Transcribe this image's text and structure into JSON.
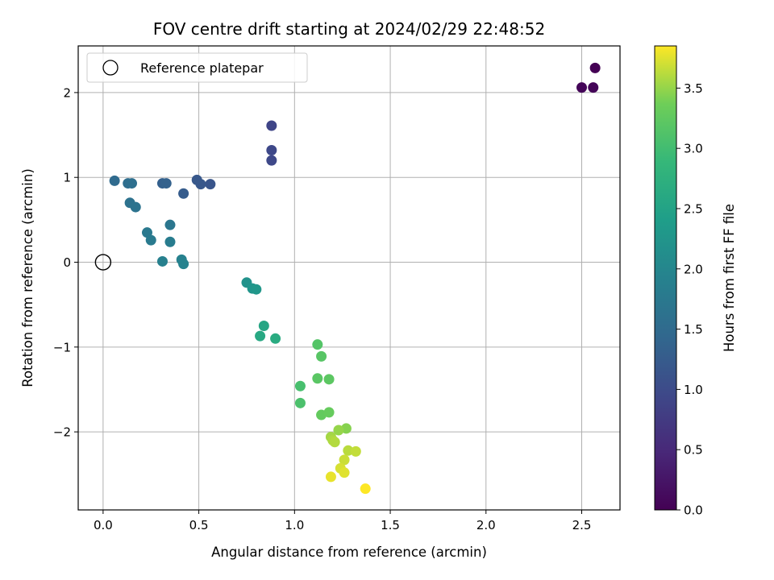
{
  "chart_data": {
    "type": "scatter",
    "title": "FOV centre drift starting at 2024/02/29 22:48:52",
    "xlabel": "Angular distance from reference (arcmin)",
    "ylabel": "Rotation from reference (arcmin)",
    "xlim": [
      -0.13,
      2.7
    ],
    "ylim": [
      -2.92,
      2.55
    ],
    "x_ticks": [
      0.0,
      0.5,
      1.0,
      1.5,
      2.0,
      2.5
    ],
    "x_tick_labels": [
      "0.0",
      "0.5",
      "1.0",
      "1.5",
      "2.0",
      "2.5"
    ],
    "y_ticks": [
      -2,
      -1,
      0,
      1,
      2
    ],
    "y_tick_labels": [
      "−2",
      "−1",
      "0",
      "1",
      "2"
    ],
    "grid": true,
    "legend": {
      "placement": "upper-left",
      "entries": [
        "Reference platepar"
      ]
    },
    "reference_point": {
      "x": 0.0,
      "y": 0.0
    },
    "colorbar": {
      "label": "Hours from first FF file",
      "colormap": "viridis",
      "range": [
        0.0,
        3.85
      ],
      "ticks": [
        0.0,
        0.5,
        1.0,
        1.5,
        2.0,
        2.5,
        3.0,
        3.5
      ],
      "tick_labels": [
        "0.0",
        "0.5",
        "1.0",
        "1.5",
        "2.0",
        "2.5",
        "3.0",
        "3.5"
      ]
    },
    "points": [
      {
        "x": 2.57,
        "y": 2.29,
        "c": 0.0
      },
      {
        "x": 2.5,
        "y": 2.06,
        "c": 0.05
      },
      {
        "x": 2.56,
        "y": 2.06,
        "c": 0.05
      },
      {
        "x": 0.88,
        "y": 1.61,
        "c": 0.9
      },
      {
        "x": 0.88,
        "y": 1.32,
        "c": 0.95
      },
      {
        "x": 0.88,
        "y": 1.2,
        "c": 0.95
      },
      {
        "x": 0.56,
        "y": 0.92,
        "c": 1.15
      },
      {
        "x": 0.51,
        "y": 0.92,
        "c": 1.18
      },
      {
        "x": 0.49,
        "y": 0.97,
        "c": 1.2
      },
      {
        "x": 0.42,
        "y": 0.81,
        "c": 1.25
      },
      {
        "x": 0.31,
        "y": 0.93,
        "c": 1.32
      },
      {
        "x": 0.33,
        "y": 0.93,
        "c": 1.35
      },
      {
        "x": 0.06,
        "y": 0.96,
        "c": 1.5
      },
      {
        "x": 0.13,
        "y": 0.93,
        "c": 1.55
      },
      {
        "x": 0.15,
        "y": 0.93,
        "c": 1.58
      },
      {
        "x": 0.14,
        "y": 0.7,
        "c": 1.62
      },
      {
        "x": 0.17,
        "y": 0.65,
        "c": 1.65
      },
      {
        "x": 0.35,
        "y": 0.44,
        "c": 1.7
      },
      {
        "x": 0.23,
        "y": 0.35,
        "c": 1.75
      },
      {
        "x": 0.25,
        "y": 0.26,
        "c": 1.78
      },
      {
        "x": 0.35,
        "y": 0.24,
        "c": 1.82
      },
      {
        "x": 0.31,
        "y": 0.01,
        "c": 1.88
      },
      {
        "x": 0.41,
        "y": 0.03,
        "c": 1.9
      },
      {
        "x": 0.42,
        "y": -0.02,
        "c": 1.92
      },
      {
        "x": 0.75,
        "y": -0.24,
        "c": 2.2
      },
      {
        "x": 0.78,
        "y": -0.31,
        "c": 2.25
      },
      {
        "x": 0.8,
        "y": -0.32,
        "c": 2.28
      },
      {
        "x": 0.84,
        "y": -0.75,
        "c": 2.55
      },
      {
        "x": 0.82,
        "y": -0.87,
        "c": 2.6
      },
      {
        "x": 0.9,
        "y": -0.9,
        "c": 2.65
      },
      {
        "x": 1.12,
        "y": -0.97,
        "c": 3.15
      },
      {
        "x": 1.14,
        "y": -1.11,
        "c": 3.18
      },
      {
        "x": 1.03,
        "y": -1.46,
        "c": 3.05
      },
      {
        "x": 1.12,
        "y": -1.37,
        "c": 3.2
      },
      {
        "x": 1.18,
        "y": -1.38,
        "c": 3.22
      },
      {
        "x": 1.03,
        "y": -1.66,
        "c": 3.08
      },
      {
        "x": 1.14,
        "y": -1.8,
        "c": 3.28
      },
      {
        "x": 1.18,
        "y": -1.77,
        "c": 3.3
      },
      {
        "x": 1.27,
        "y": -1.96,
        "c": 3.45
      },
      {
        "x": 1.23,
        "y": -1.98,
        "c": 3.5
      },
      {
        "x": 1.19,
        "y": -2.06,
        "c": 3.55
      },
      {
        "x": 1.2,
        "y": -2.1,
        "c": 3.58
      },
      {
        "x": 1.21,
        "y": -2.12,
        "c": 3.6
      },
      {
        "x": 1.28,
        "y": -2.22,
        "c": 3.62
      },
      {
        "x": 1.32,
        "y": -2.23,
        "c": 3.65
      },
      {
        "x": 1.26,
        "y": -2.33,
        "c": 3.68
      },
      {
        "x": 1.24,
        "y": -2.43,
        "c": 3.72
      },
      {
        "x": 1.26,
        "y": -2.48,
        "c": 3.75
      },
      {
        "x": 1.19,
        "y": -2.53,
        "c": 3.78
      },
      {
        "x": 1.37,
        "y": -2.67,
        "c": 3.85
      }
    ]
  }
}
